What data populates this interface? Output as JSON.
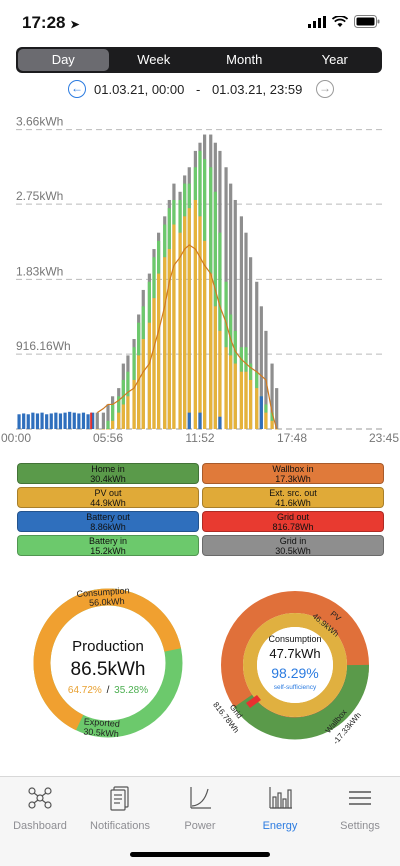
{
  "status": {
    "time": "17:28"
  },
  "tabs": [
    "Day",
    "Week",
    "Month",
    "Year"
  ],
  "date": {
    "from": "01.03.21, 00:00",
    "separator": "-",
    "to": "01.03.21, 23:59"
  },
  "chart_data": {
    "type": "bar",
    "y_tick_labels": [
      "3.66kWh",
      "2.75kWh",
      "1.83kWh",
      "916.16Wh"
    ],
    "y_ticks": [
      3.66,
      2.75,
      1.83,
      0.916
    ],
    "ylim": [
      0,
      3.9
    ],
    "x_tick_labels": [
      "00:00",
      "05:56",
      "11:52",
      "17:48",
      "23:45"
    ],
    "colors": {
      "total": "#8e8e8e",
      "pv_out": "#e6b33a",
      "battery_in": "#6cc96c",
      "battery_out": "#2f6fbd",
      "grid_out": "#e03030",
      "line": "#d07a20"
    },
    "hours": [
      5.3,
      5.7,
      6.0,
      6.3,
      6.7,
      7.0,
      7.3,
      7.7,
      8.0,
      8.3,
      8.7,
      9.0,
      9.3,
      9.7,
      10.0,
      10.3,
      10.7,
      11.0,
      11.3,
      11.7,
      12.0,
      12.3,
      12.7,
      13.0,
      13.3,
      13.7,
      14.0,
      14.3,
      14.7,
      15.0,
      15.3,
      15.7,
      16.0,
      16.3,
      16.7,
      17.0
    ],
    "total": [
      0.2,
      0.2,
      0.3,
      0.4,
      0.5,
      0.8,
      0.9,
      1.1,
      1.4,
      1.7,
      1.9,
      2.2,
      2.4,
      2.6,
      2.8,
      3.0,
      2.9,
      3.1,
      3.2,
      3.4,
      3.5,
      3.6,
      3.6,
      3.5,
      3.4,
      3.2,
      3.0,
      2.8,
      2.6,
      2.4,
      2.1,
      1.8,
      1.5,
      1.2,
      0.8,
      0.5
    ],
    "pv_out": [
      0,
      0,
      0,
      0.1,
      0.2,
      0.3,
      0.4,
      0.6,
      0.9,
      1.1,
      1.3,
      1.6,
      1.9,
      2.1,
      2.2,
      2.5,
      2.4,
      2.6,
      2.7,
      2.8,
      2.6,
      2.3,
      1.9,
      1.5,
      1.2,
      1.0,
      0.9,
      0.8,
      0.7,
      0.7,
      0.6,
      0.5,
      0.3,
      0.2,
      0.1,
      0
    ],
    "battery_in": [
      0,
      0,
      0.1,
      0.2,
      0.2,
      0.3,
      0.3,
      0.4,
      0.4,
      0.4,
      0.5,
      0.5,
      0.4,
      0.4,
      0.5,
      0.3,
      0.4,
      0.4,
      0.3,
      0.4,
      0.8,
      1.0,
      1.3,
      1.4,
      1.2,
      0.8,
      0.5,
      0.4,
      0.3,
      0.3,
      0.2,
      0.2,
      0.1,
      0.1,
      0.1,
      0
    ],
    "battery_out_hours": [
      0.2,
      0.5,
      0.8,
      1.1,
      1.4,
      1.7,
      2.0,
      2.3,
      2.6,
      2.9,
      3.2,
      3.5,
      3.8,
      4.1,
      4.4,
      4.7,
      5.0,
      11.3,
      12.0,
      13.3,
      16.0
    ],
    "battery_out": [
      0.18,
      0.19,
      0.18,
      0.2,
      0.19,
      0.2,
      0.18,
      0.19,
      0.2,
      0.19,
      0.2,
      0.21,
      0.2,
      0.19,
      0.2,
      0.18,
      0.2,
      0.2,
      0.2,
      0.15,
      0.4
    ],
    "line": [
      0.2,
      0.25,
      0.3,
      0.3,
      0.35,
      0.4,
      0.45,
      0.5,
      0.6,
      0.7,
      0.8,
      1.0,
      1.2,
      1.5,
      1.8,
      2.0,
      2.1,
      2.2,
      2.25,
      2.2,
      2.1,
      2.0,
      1.9,
      1.7,
      1.5,
      1.3,
      1.1,
      0.95,
      0.85,
      0.8,
      0.75,
      0.7,
      0.65,
      0.6,
      0.2,
      0
    ]
  },
  "legend": [
    {
      "name": "Home in",
      "value": "30.4kWh",
      "color": "#5a9a4a"
    },
    {
      "name": "Wallbox in",
      "value": "17.3kWh",
      "color": "#e07a3a"
    },
    {
      "name": "PV out",
      "value": "44.9kWh",
      "color": "#e0aa38"
    },
    {
      "name": "Ext. src. out",
      "value": "41.6kWh",
      "color": "#e0aa38"
    },
    {
      "name": "Battery out",
      "value": "8.86kWh",
      "color": "#2f6fbd"
    },
    {
      "name": "Grid out",
      "value": "816.78Wh",
      "color": "#e83a30"
    },
    {
      "name": "Battery in",
      "value": "15.2kWh",
      "color": "#6cc96c"
    },
    {
      "name": "Grid in",
      "value": "30.5kWh",
      "color": "#8e8e8e"
    }
  ],
  "production_donut": {
    "title": "Production",
    "value": "86.5kWh",
    "pct_consumption": "64.72%",
    "separator": "/",
    "pct_exported": "35.28%",
    "consumption_label": "Consumption",
    "consumption_value": "56.0kWh",
    "exported_label": "Exported",
    "exported_value": "30.5kWh",
    "consumption_share": 0.6472,
    "colors": {
      "consumption": "#f0a030",
      "exported": "#6cc96c"
    }
  },
  "consumption_donut": {
    "title": "Consumption",
    "value": "47.7kWh",
    "self_sufficiency": "98.29%",
    "self_sufficiency_label": "self-sufficiency",
    "pv_label": "PV",
    "pv_value": "46.9kWh",
    "wallbox_label": "Wallbox",
    "wallbox_value": "-17.33kWh",
    "grid_label": "Grid",
    "grid_value": "816.78Wh",
    "colors": {
      "outer_pv": "#e0703a",
      "outer_wallbox": "#5a9a4a",
      "inner": "#e0b040",
      "grid": "#e83030"
    }
  },
  "bottom_nav": [
    {
      "label": "Dashboard",
      "icon": "dashboard-icon",
      "active": false
    },
    {
      "label": "Notifications",
      "icon": "notifications-icon",
      "active": false
    },
    {
      "label": "Power",
      "icon": "power-icon",
      "active": false
    },
    {
      "label": "Energy",
      "icon": "energy-icon",
      "active": true
    },
    {
      "label": "Settings",
      "icon": "settings-icon",
      "active": false
    }
  ]
}
